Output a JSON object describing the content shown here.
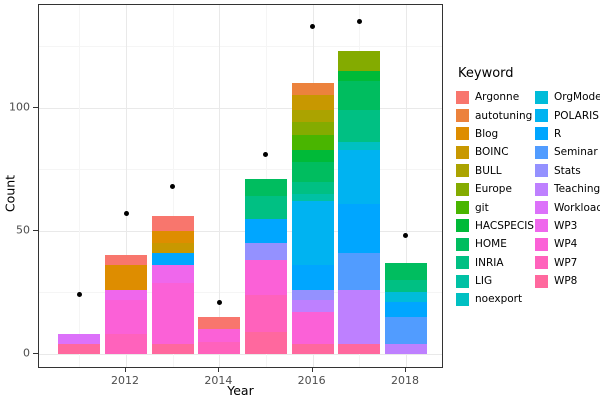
{
  "chart_data": {
    "type": "bar",
    "subtype": "stacked-bars-with-scatter-overlay",
    "title": "",
    "xlabel": "Year",
    "ylabel": "Count",
    "x_ticks": [
      2012,
      2014,
      2016,
      2018
    ],
    "x_minor": [
      2011,
      2013,
      2015,
      2017
    ],
    "y_ticks": [
      0,
      50,
      100
    ],
    "y_minor": [
      25,
      75,
      125
    ],
    "ylim": [
      -6,
      142
    ],
    "xlim": [
      2010.1,
      2018.8
    ],
    "grid": true,
    "legend_position": "right",
    "legend_title": "Keyword",
    "keywords": [
      {
        "name": "Argonne",
        "color": "#F8766D"
      },
      {
        "name": "autotuning",
        "color": "#EC823C"
      },
      {
        "name": "Blog",
        "color": "#DE8D00"
      },
      {
        "name": "BOINC",
        "color": "#C89800"
      },
      {
        "name": "BULL",
        "color": "#ABA300"
      },
      {
        "name": "Europe",
        "color": "#84AB00"
      },
      {
        "name": "git",
        "color": "#49B500"
      },
      {
        "name": "HACSPECIS",
        "color": "#00BA38"
      },
      {
        "name": "HOME",
        "color": "#00BD5F"
      },
      {
        "name": "INRIA",
        "color": "#00C083"
      },
      {
        "name": "LIG",
        "color": "#00C1A4"
      },
      {
        "name": "noexport",
        "color": "#00C0C2"
      },
      {
        "name": "OrgMode",
        "color": "#00BCD9"
      },
      {
        "name": "POLARIS",
        "color": "#00B3F1"
      },
      {
        "name": "R",
        "color": "#00A6FF"
      },
      {
        "name": "Seminar",
        "color": "#519CFF"
      },
      {
        "name": "Stats",
        "color": "#9491FF"
      },
      {
        "name": "Teaching",
        "color": "#BE80FF"
      },
      {
        "name": "Workload",
        "color": "#DC71FA"
      },
      {
        "name": "WP3",
        "color": "#EF67EC"
      },
      {
        "name": "WP4",
        "color": "#FB61D7"
      },
      {
        "name": "WP7",
        "color": "#FF62BC"
      },
      {
        "name": "WP8",
        "color": "#FF689E"
      }
    ],
    "years": [
      2011,
      2012,
      2013,
      2014,
      2015,
      2016,
      2017,
      2018
    ],
    "stacked_counts": {
      "2011": {
        "WP8": 4,
        "Workload": 4
      },
      "2012": {
        "WP7": 8,
        "WP4": 14,
        "WP3": 4,
        "Blog": 10,
        "Argonne": 4
      },
      "2013": {
        "WP8": 4,
        "WP4": 25,
        "WP3": 7,
        "R": 5,
        "BOINC": 4,
        "Blog": 5,
        "Argonne": 6
      },
      "2014": {
        "WP7": 5,
        "WP4": 5,
        "Argonne": 5
      },
      "2015": {
        "WP8": 9,
        "WP7": 15,
        "WP4": 14,
        "Stats": 7,
        "R": 10,
        "INRIA": 9,
        "HOME": 7
      },
      "2016": {
        "WP8": 4,
        "WP4": 13,
        "Teaching": 5,
        "Stats": 4,
        "R": 10,
        "POLARIS": 26,
        "LIG": 3,
        "INRIA": 5,
        "HOME": 8,
        "HACSPECIS": 5,
        "git": 6,
        "Europe": 5,
        "BULL": 5,
        "BOINC": 6,
        "autotuning": 5
      },
      "2017": {
        "WP8": 4,
        "Teaching": 22,
        "Seminar": 15,
        "R": 20,
        "POLARIS": 22,
        "noexport": 3,
        "INRIA": 13,
        "HOME": 12,
        "HACSPECIS": 4,
        "Europe": 8
      },
      "2018": {
        "Teaching": 4,
        "Seminar": 11,
        "R": 6,
        "OrgMode": 4,
        "INRIA": 5,
        "HOME": 7
      }
    },
    "bar_totals": {
      "2011": 8,
      "2012": 40,
      "2013": 56,
      "2014": 15,
      "2015": 71,
      "2016": 110,
      "2017": 123,
      "2018": 37
    },
    "points": {
      "2011": 24,
      "2012": 57,
      "2013": 68,
      "2014": 21,
      "2015": 81,
      "2016": 133,
      "2017": 135,
      "2018": 48
    }
  },
  "axes": {
    "x_title": "Year",
    "y_title": "Count"
  },
  "legend": {
    "title": "Keyword"
  }
}
